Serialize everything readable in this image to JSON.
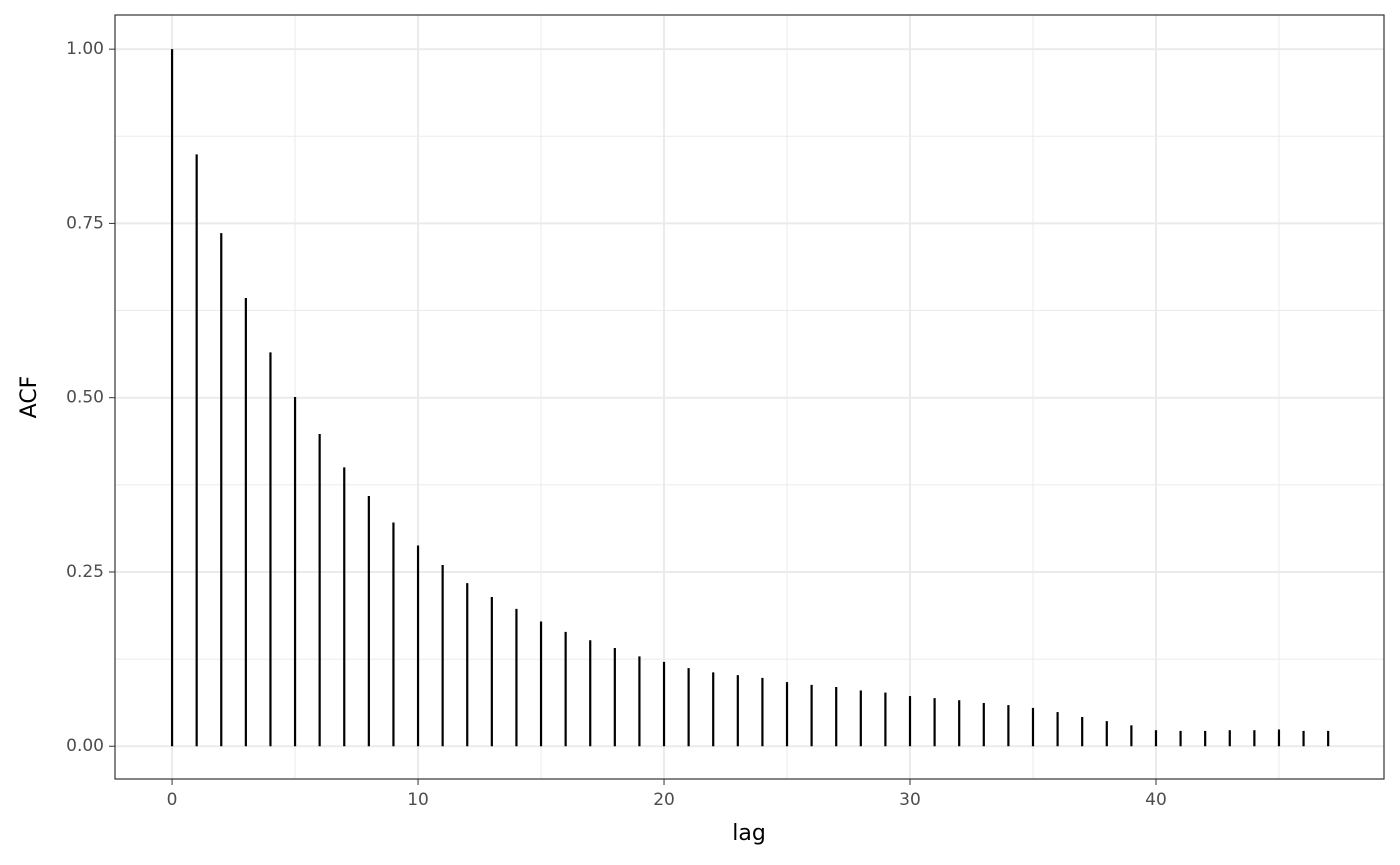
{
  "chart_data": {
    "type": "stem",
    "x_label": "lag",
    "y_label": "ACF",
    "x": [
      0,
      1,
      2,
      3,
      4,
      5,
      6,
      7,
      8,
      9,
      10,
      11,
      12,
      13,
      14,
      15,
      16,
      17,
      18,
      19,
      20,
      21,
      22,
      23,
      24,
      25,
      26,
      27,
      28,
      29,
      30,
      31,
      32,
      33,
      34,
      35,
      36,
      37,
      38,
      39,
      40,
      41,
      42,
      43,
      44,
      45,
      46,
      47
    ],
    "values": [
      1.0,
      0.849,
      0.736,
      0.643,
      0.565,
      0.501,
      0.448,
      0.4,
      0.359,
      0.321,
      0.288,
      0.26,
      0.234,
      0.214,
      0.197,
      0.179,
      0.164,
      0.152,
      0.141,
      0.129,
      0.121,
      0.112,
      0.106,
      0.102,
      0.098,
      0.092,
      0.088,
      0.085,
      0.08,
      0.077,
      0.072,
      0.069,
      0.066,
      0.062,
      0.059,
      0.055,
      0.049,
      0.042,
      0.036,
      0.03,
      0.023,
      0.022,
      0.022,
      0.023,
      0.023,
      0.024,
      0.022,
      0.022
    ],
    "color": "#000000",
    "xlim": [
      -2.32,
      49.27
    ],
    "ylim": [
      -0.047,
      1.049
    ],
    "xticks": [
      0,
      10,
      20,
      30,
      40
    ],
    "yticks": [
      {
        "value": 0,
        "label": "0.00"
      },
      {
        "value": 0.25,
        "label": "0.25"
      },
      {
        "value": 0.5,
        "label": "0.50"
      },
      {
        "value": 0.75,
        "label": "0.75"
      },
      {
        "value": 1,
        "label": "1.00"
      }
    ],
    "x_minor_ticks": [
      5,
      15,
      25,
      35,
      45
    ],
    "y_minor_ticks": [
      0.125,
      0.375,
      0.625,
      0.875
    ],
    "grid": true
  }
}
